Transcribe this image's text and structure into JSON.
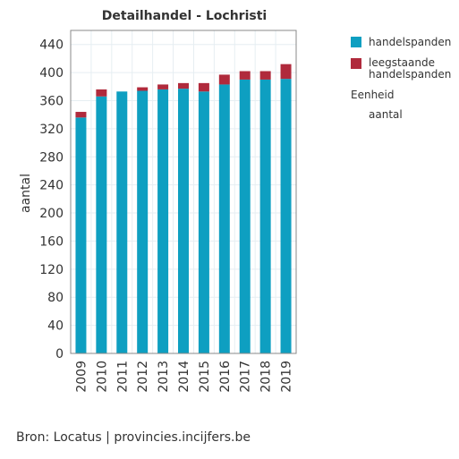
{
  "chart_data": {
    "type": "bar",
    "stacked": true,
    "title": "Detailhandel - Lochristi",
    "ylabel": "aantal",
    "xlabel": "",
    "ylim": [
      0,
      460
    ],
    "yticks": [
      0,
      40,
      80,
      120,
      160,
      200,
      240,
      280,
      320,
      360,
      400,
      440
    ],
    "grid": true,
    "legend_position": "right",
    "categories": [
      "2009",
      "2010",
      "2011",
      "2012",
      "2013",
      "2014",
      "2015",
      "2016",
      "2017",
      "2018",
      "2019"
    ],
    "series": [
      {
        "name": "handelspanden",
        "color": "#0e9fc1",
        "values": [
          336,
          366,
          373,
          374,
          376,
          377,
          373,
          383,
          390,
          390,
          391
        ]
      },
      {
        "name": "leegstaande handelspanden",
        "color": "#b02a3c",
        "values": [
          8,
          10,
          0,
          5,
          7,
          8,
          12,
          14,
          12,
          12,
          21
        ]
      }
    ],
    "legend_extra": {
      "heading": "Eenheid",
      "value": "aantal"
    },
    "source": "Bron: Locatus | provincies.incijfers.be"
  }
}
